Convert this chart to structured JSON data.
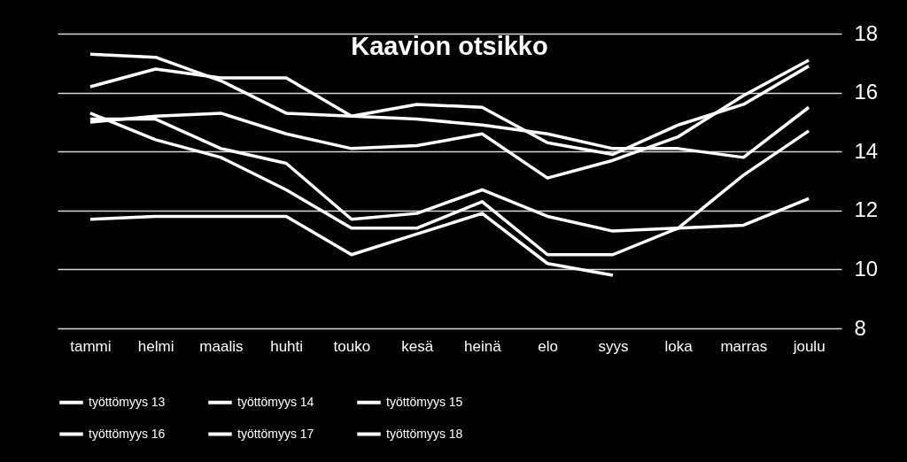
{
  "chart_data": {
    "type": "line",
    "title": "Kaavion otsikko",
    "categories": [
      "tammi",
      "helmi",
      "maalis",
      "huhti",
      "touko",
      "kesä",
      "heinä",
      "elo",
      "syys",
      "loka",
      "marras",
      "joulu"
    ],
    "series": [
      {
        "name": "työttömyys 13",
        "color": "#ffffff",
        "values": [
          15.1,
          15.1,
          14.1,
          13.6,
          11.7,
          11.9,
          12.7,
          11.8,
          11.3,
          11.4,
          11.5,
          12.4
        ]
      },
      {
        "name": "työttömyys 14",
        "color": "#ffffff",
        "values": [
          15.0,
          15.2,
          15.3,
          14.6,
          14.1,
          14.2,
          14.6,
          13.1,
          13.7,
          14.5,
          15.9,
          17.1
        ]
      },
      {
        "name": "työttömyys 15",
        "color": "#ffffff",
        "values": [
          16.2,
          16.8,
          16.5,
          16.5,
          15.2,
          15.1,
          14.9,
          14.6,
          14.1,
          14.1,
          13.8,
          15.5
        ]
      },
      {
        "name": "työttömyys 16",
        "color": "#ffffff",
        "values": [
          17.3,
          17.2,
          16.4,
          15.3,
          15.2,
          15.6,
          15.5,
          14.3,
          13.9,
          14.9,
          15.6,
          16.9
        ]
      },
      {
        "name": "työttömyys 17",
        "color": "#ffffff",
        "values": [
          15.3,
          14.4,
          13.8,
          12.7,
          11.4,
          11.4,
          12.3,
          10.5,
          10.5,
          11.4,
          13.2,
          14.7
        ]
      },
      {
        "name": "työttömyys 18",
        "color": "#ffffff",
        "values": [
          11.7,
          11.8,
          11.8,
          11.8,
          10.5,
          11.2,
          11.9,
          10.2,
          9.8,
          null,
          null,
          null
        ]
      }
    ],
    "ylim": [
      8,
      18
    ],
    "yticks": [
      8,
      10,
      12,
      14,
      16,
      18
    ],
    "grid": "y",
    "legend": "bottom",
    "line_style": "solid",
    "marker": "none"
  }
}
